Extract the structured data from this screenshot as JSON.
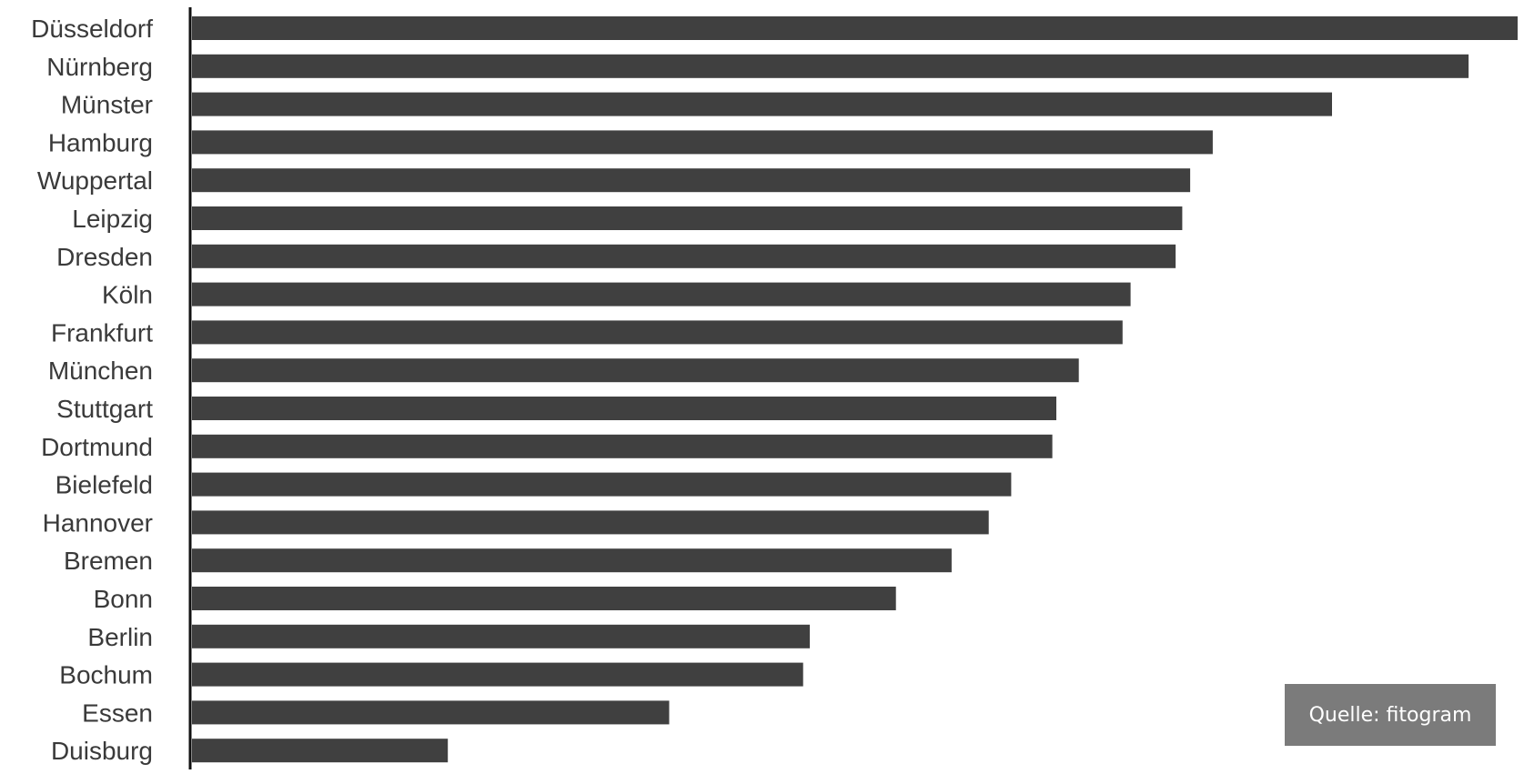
{
  "chart_data": {
    "type": "bar",
    "orientation": "horizontal",
    "title": "",
    "xlabel": "",
    "ylabel": "",
    "categories": [
      "Düsseldorf",
      "Nürnberg",
      "Münster",
      "Hamburg",
      "Wuppertal",
      "Leipzig",
      "Dresden",
      "Köln",
      "Frankfurt",
      "München",
      "Stuttgart",
      "Dortmund",
      "Bielefeld",
      "Hannover",
      "Bremen",
      "Bonn",
      "Berlin",
      "Bochum",
      "Essen",
      "Duisburg"
    ],
    "values": [
      100,
      96.3,
      86.0,
      77.0,
      75.3,
      74.7,
      74.2,
      70.8,
      70.2,
      66.9,
      65.2,
      64.9,
      61.8,
      60.1,
      57.3,
      53.1,
      46.6,
      46.1,
      36.0,
      19.3
    ],
    "xlim": [
      0,
      100
    ],
    "grid": false,
    "legend": "none",
    "bar_color": "#404040",
    "axis_color": "#111111"
  },
  "source": {
    "label": "Quelle: fitogram",
    "background": "#7b7b7b"
  }
}
